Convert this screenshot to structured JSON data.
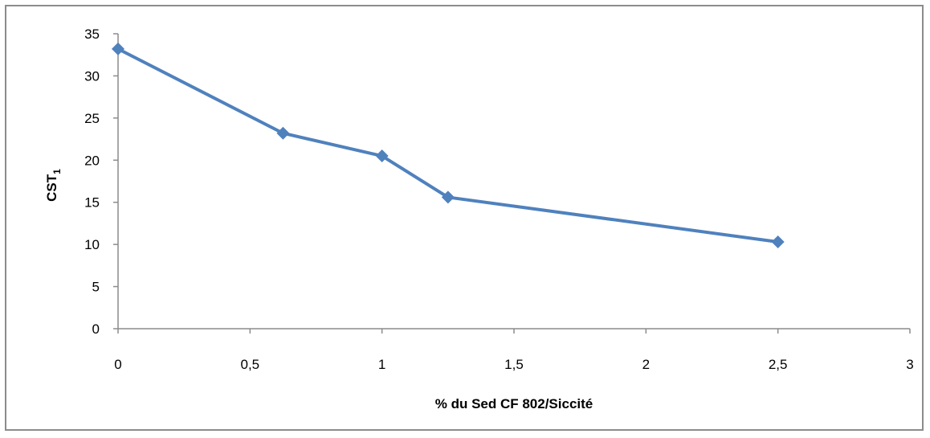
{
  "chart_data": {
    "type": "line",
    "title": "",
    "xlabel": "% du Sed CF 802/Siccité",
    "ylabel_main": "CST",
    "ylabel_sub": "1",
    "xlim": [
      0,
      3
    ],
    "ylim": [
      0,
      35
    ],
    "x_ticks": [
      "0",
      "0,5",
      "1",
      "1,5",
      "2",
      "2,5",
      "3"
    ],
    "x_tick_values": [
      0,
      0.5,
      1,
      1.5,
      2,
      2.5,
      3
    ],
    "y_ticks": [
      "0",
      "5",
      "10",
      "15",
      "20",
      "25",
      "30",
      "35"
    ],
    "y_tick_values": [
      0,
      5,
      10,
      15,
      20,
      25,
      30,
      35
    ],
    "grid": false,
    "legend": "none",
    "series": [
      {
        "x": [
          0,
          0.625,
          1,
          1.25,
          2.5
        ],
        "y": [
          33.2,
          23.2,
          20.5,
          15.6,
          10.3
        ],
        "color": "#4f81bd",
        "marker": "diamond"
      }
    ]
  }
}
